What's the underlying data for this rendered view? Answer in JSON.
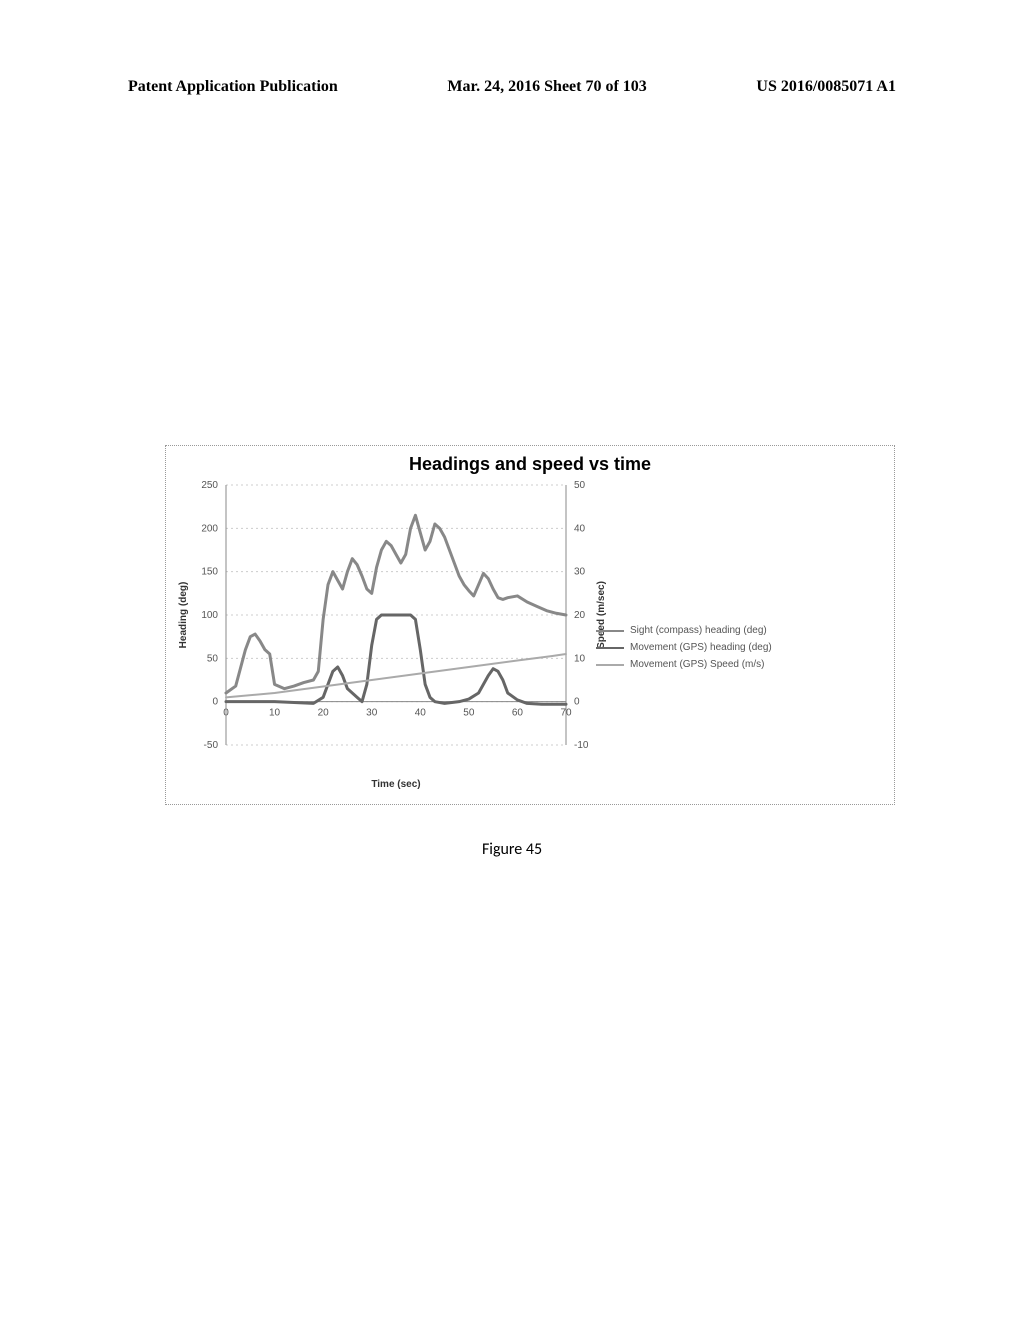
{
  "header": {
    "left": "Patent Application Publication",
    "center": "Mar. 24, 2016  Sheet 70 of 103",
    "right": "US 2016/0085071 A1"
  },
  "figure_caption": "Figure 45",
  "chart": {
    "title": "Headings and speed vs time",
    "xlabel": "Time (sec)",
    "ylabel_left": "Heading (deg)",
    "ylabel_right": "Speed (m/sec)",
    "title_fontsize": 18,
    "label_fontsize": 10,
    "tick_fontsize": 10,
    "background_color": "#ffffff",
    "grid_color": "#cccccc",
    "xlim": [
      0,
      70
    ],
    "xtick_step": 10,
    "y1lim": [
      -50,
      250
    ],
    "y1tick_step": 50,
    "y2lim": [
      -10,
      50
    ],
    "y2tick_step": 10,
    "legend": [
      {
        "label": "Sight (compass) heading (deg)",
        "color": "#888888"
      },
      {
        "label": "Movement (GPS) heading (deg)",
        "color": "#666666"
      },
      {
        "label": "Movement (GPS) Speed (m/s)",
        "color": "#aaaaaa"
      }
    ],
    "series": {
      "sight_heading": {
        "color": "#888888",
        "line_width": 3,
        "points": [
          [
            0,
            10
          ],
          [
            2,
            18
          ],
          [
            4,
            60
          ],
          [
            5,
            75
          ],
          [
            6,
            78
          ],
          [
            7,
            70
          ],
          [
            8,
            60
          ],
          [
            9,
            55
          ],
          [
            10,
            20
          ],
          [
            12,
            15
          ],
          [
            14,
            18
          ],
          [
            16,
            22
          ],
          [
            18,
            25
          ],
          [
            19,
            35
          ],
          [
            20,
            95
          ],
          [
            21,
            135
          ],
          [
            22,
            150
          ],
          [
            23,
            140
          ],
          [
            24,
            130
          ],
          [
            25,
            150
          ],
          [
            26,
            165
          ],
          [
            27,
            158
          ],
          [
            28,
            145
          ],
          [
            29,
            130
          ],
          [
            30,
            125
          ],
          [
            31,
            155
          ],
          [
            32,
            175
          ],
          [
            33,
            185
          ],
          [
            34,
            180
          ],
          [
            35,
            170
          ],
          [
            36,
            160
          ],
          [
            37,
            170
          ],
          [
            38,
            200
          ],
          [
            39,
            215
          ],
          [
            40,
            195
          ],
          [
            41,
            175
          ],
          [
            42,
            185
          ],
          [
            43,
            205
          ],
          [
            44,
            200
          ],
          [
            45,
            190
          ],
          [
            46,
            175
          ],
          [
            47,
            160
          ],
          [
            48,
            145
          ],
          [
            49,
            135
          ],
          [
            50,
            128
          ],
          [
            51,
            122
          ],
          [
            52,
            135
          ],
          [
            53,
            148
          ],
          [
            54,
            142
          ],
          [
            55,
            130
          ],
          [
            56,
            120
          ],
          [
            57,
            118
          ],
          [
            58,
            120
          ],
          [
            60,
            122
          ],
          [
            62,
            115
          ],
          [
            64,
            110
          ],
          [
            66,
            105
          ],
          [
            68,
            102
          ],
          [
            70,
            100
          ]
        ]
      },
      "gps_heading": {
        "color": "#666666",
        "line_width": 3,
        "points": [
          [
            0,
            0
          ],
          [
            5,
            0
          ],
          [
            10,
            0
          ],
          [
            18,
            -2
          ],
          [
            20,
            5
          ],
          [
            22,
            35
          ],
          [
            23,
            40
          ],
          [
            24,
            30
          ],
          [
            25,
            15
          ],
          [
            27,
            5
          ],
          [
            28,
            0
          ],
          [
            29,
            20
          ],
          [
            30,
            65
          ],
          [
            31,
            95
          ],
          [
            32,
            100
          ],
          [
            33,
            100
          ],
          [
            34,
            100
          ],
          [
            36,
            100
          ],
          [
            38,
            100
          ],
          [
            39,
            95
          ],
          [
            40,
            60
          ],
          [
            41,
            20
          ],
          [
            42,
            5
          ],
          [
            43,
            0
          ],
          [
            45,
            -2
          ],
          [
            48,
            0
          ],
          [
            50,
            3
          ],
          [
            52,
            10
          ],
          [
            54,
            30
          ],
          [
            55,
            38
          ],
          [
            56,
            35
          ],
          [
            57,
            25
          ],
          [
            58,
            10
          ],
          [
            60,
            2
          ],
          [
            62,
            -2
          ],
          [
            65,
            -3
          ],
          [
            70,
            -3
          ]
        ]
      },
      "gps_speed": {
        "color": "#aaaaaa",
        "line_width": 2,
        "y2": true,
        "points": [
          [
            0,
            1
          ],
          [
            10,
            2
          ],
          [
            20,
            3.5
          ],
          [
            30,
            5
          ],
          [
            40,
            6.5
          ],
          [
            50,
            8
          ],
          [
            60,
            9.5
          ],
          [
            67,
            10.5
          ],
          [
            70,
            11
          ]
        ]
      }
    }
  }
}
